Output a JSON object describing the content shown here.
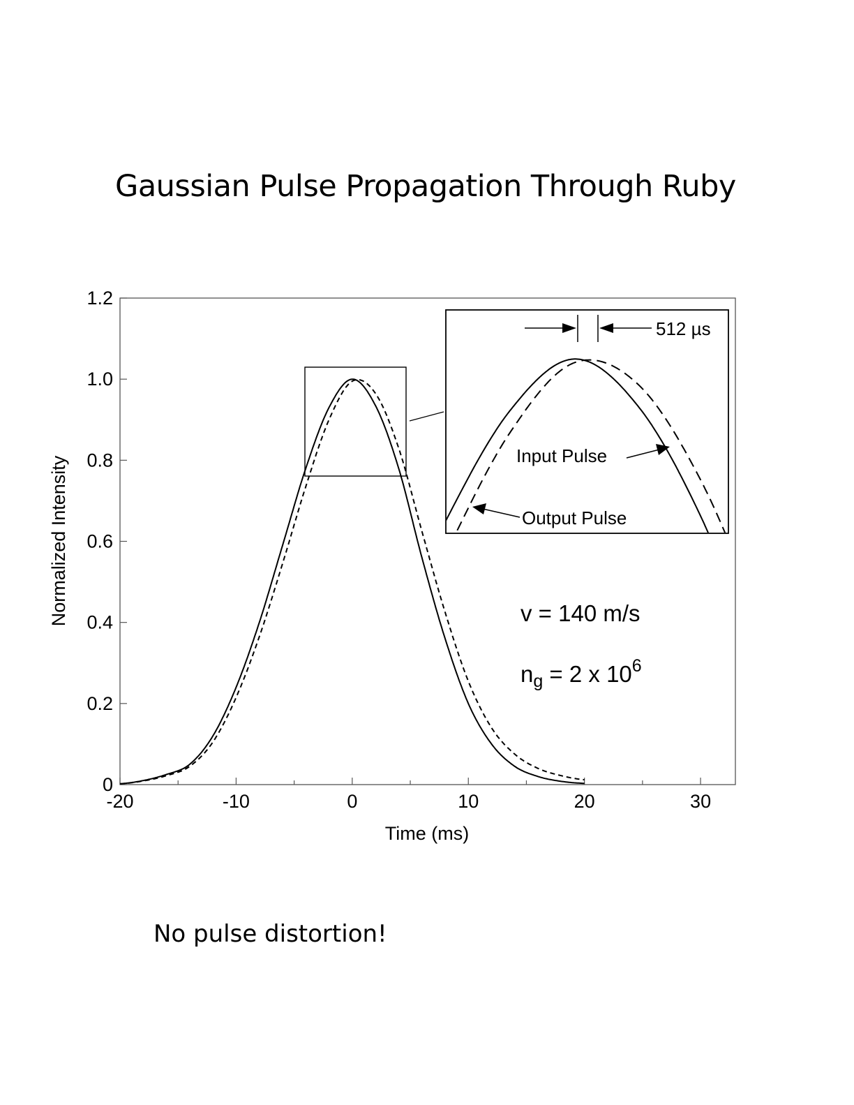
{
  "slide": {
    "title": "Gaussian Pulse Propagation Through Ruby",
    "footer": "No pulse distortion!"
  },
  "chart_data": {
    "type": "line",
    "xlabel": "Time (ms)",
    "ylabel": "Normalized Intensity",
    "xlim": [
      -20,
      33
    ],
    "ylim": [
      0,
      1.2
    ],
    "x_ticks": [
      -20,
      -10,
      0,
      10,
      20,
      30
    ],
    "x_tick_labels": [
      "-20",
      "-10",
      "0",
      "10",
      "20",
      "30"
    ],
    "y_ticks": [
      0,
      0.2,
      0.4,
      0.6,
      0.8,
      1.0,
      1.2
    ],
    "y_tick_labels": [
      "0",
      "0.2",
      "0.4",
      "0.6",
      "0.8",
      "1.0",
      "1.2"
    ],
    "grid": false,
    "series": [
      {
        "name": "Input Pulse",
        "style": "solid",
        "x": [
          -20,
          -18,
          -16,
          -14,
          -12,
          -10,
          -8,
          -6,
          -4,
          -2,
          0,
          2,
          4,
          6,
          8,
          10,
          12,
          14,
          16,
          18,
          20
        ],
        "y": [
          0.002,
          0.01,
          0.025,
          0.05,
          0.12,
          0.24,
          0.4,
          0.59,
          0.78,
          0.93,
          1.0,
          0.935,
          0.78,
          0.56,
          0.36,
          0.2,
          0.1,
          0.045,
          0.02,
          0.008,
          0.003
        ]
      },
      {
        "name": "Output Pulse",
        "style": "dashed",
        "x": [
          -20,
          -18,
          -16,
          -14,
          -12,
          -10,
          -8,
          -6,
          -4,
          -2,
          0,
          2,
          4,
          6,
          8,
          10,
          12,
          14,
          16,
          18,
          20
        ],
        "y": [
          0.002,
          0.009,
          0.022,
          0.045,
          0.105,
          0.215,
          0.365,
          0.545,
          0.735,
          0.9,
          0.995,
          0.965,
          0.83,
          0.625,
          0.425,
          0.255,
          0.14,
          0.075,
          0.04,
          0.022,
          0.012
        ]
      }
    ],
    "zoom_box": {
      "x": [
        -4,
        4.8
      ],
      "y": [
        0.76,
        1.03
      ]
    },
    "annotations": {
      "delay": "512 µs",
      "input_label": "Input Pulse",
      "output_label": "Output Pulse",
      "velocity": "v = 140 m/s",
      "group_index_main": "n",
      "group_index_sub": "g",
      "group_index_rest": " = 2 x 10",
      "group_index_sup": "6"
    }
  }
}
